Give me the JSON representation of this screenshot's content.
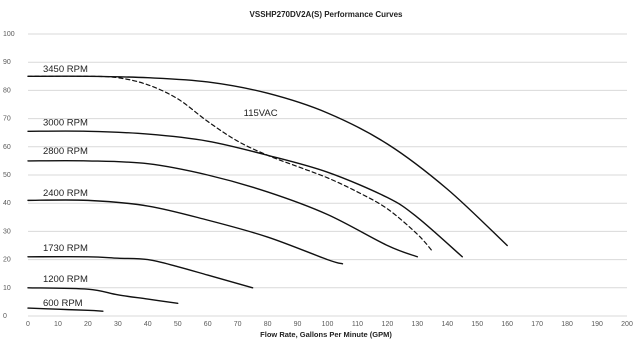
{
  "chart_data": {
    "type": "line",
    "title": "VSSHP270DV2A(S) Performance Curves",
    "xlabel": "Flow Rate, Gallons Per Minute (GPM)",
    "ylabel": "",
    "xlim": [
      0,
      200
    ],
    "ylim": [
      0,
      100
    ],
    "xticks": [
      0,
      10,
      20,
      30,
      40,
      50,
      60,
      70,
      80,
      90,
      100,
      110,
      120,
      130,
      140,
      150,
      160,
      170,
      180,
      190,
      200
    ],
    "yticks": [
      0,
      10,
      20,
      30,
      40,
      50,
      60,
      70,
      80,
      90,
      100
    ],
    "xtick_labels": [
      "0",
      "10",
      "20",
      "30",
      "40",
      "50",
      "60",
      "70",
      "80",
      "90",
      "100",
      "110",
      "120",
      "130",
      "140",
      "150",
      "160",
      "170",
      "180",
      "190",
      "200"
    ],
    "ytick_labels": [
      "0",
      "10",
      "20",
      "30",
      "40",
      "50",
      "60",
      "70",
      "80",
      "90",
      "100"
    ],
    "grid": "horizontal",
    "series": [
      {
        "name": "3450 RPM",
        "style": "solid",
        "label_at": [
          5,
          86.5
        ],
        "x": [
          0,
          20,
          40,
          60,
          80,
          100,
          120,
          140,
          160
        ],
        "y": [
          85,
          85,
          84.5,
          83,
          79,
          72,
          61,
          45,
          25
        ]
      },
      {
        "name": "115VAC",
        "style": "dashed",
        "label_at": [
          72,
          71
        ],
        "x": [
          0,
          20,
          30,
          40,
          50,
          60,
          70,
          80,
          90,
          100,
          110,
          120,
          130,
          135
        ],
        "y": [
          85,
          85,
          84.5,
          82,
          77,
          69,
          62,
          57,
          53,
          49,
          44,
          38,
          29,
          23
        ]
      },
      {
        "name": "3000 RPM",
        "style": "solid",
        "label_at": [
          5,
          67.5
        ],
        "x": [
          0,
          20,
          40,
          60,
          80,
          100,
          120,
          130,
          145
        ],
        "y": [
          65.5,
          65.5,
          64.5,
          62,
          57,
          51,
          42,
          35,
          21
        ]
      },
      {
        "name": "2800 RPM",
        "style": "solid",
        "label_at": [
          5,
          57.5
        ],
        "x": [
          0,
          20,
          40,
          60,
          80,
          100,
          120,
          130
        ],
        "y": [
          55,
          55,
          54,
          50,
          44,
          36,
          25,
          21
        ]
      },
      {
        "name": "2400 RPM",
        "style": "solid",
        "label_at": [
          5,
          42.5
        ],
        "x": [
          0,
          20,
          40,
          60,
          80,
          100,
          105
        ],
        "y": [
          41,
          41,
          39,
          34,
          28,
          20,
          18.5
        ]
      },
      {
        "name": "1730 RPM",
        "style": "solid",
        "label_at": [
          5,
          23
        ],
        "x": [
          0,
          20,
          30,
          40,
          50,
          60,
          70,
          75
        ],
        "y": [
          21,
          21,
          20.5,
          20,
          17.5,
          14.5,
          11.5,
          10
        ]
      },
      {
        "name": "1200 RPM",
        "style": "solid",
        "label_at": [
          5,
          12
        ],
        "x": [
          0,
          20,
          30,
          40,
          50
        ],
        "y": [
          10,
          9.5,
          7.5,
          6,
          4.5
        ]
      },
      {
        "name": "600 RPM",
        "style": "solid",
        "label_at": [
          5,
          3.5
        ],
        "x": [
          0,
          10,
          20,
          25
        ],
        "y": [
          2.8,
          2.4,
          2,
          1.7
        ]
      }
    ]
  }
}
